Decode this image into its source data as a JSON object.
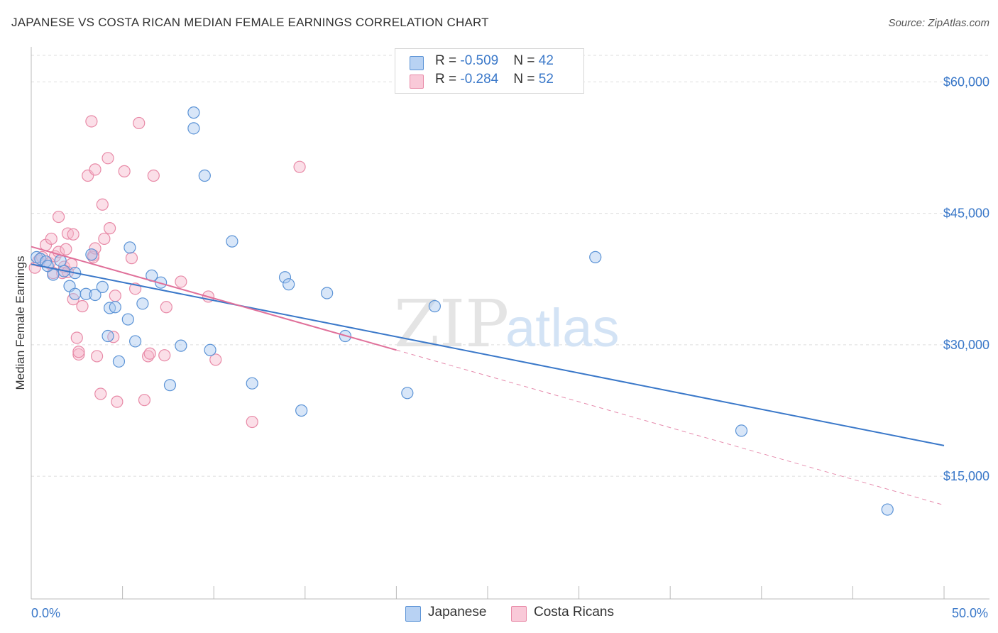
{
  "header": {
    "title": "JAPANESE VS COSTA RICAN MEDIAN FEMALE EARNINGS CORRELATION CHART",
    "source": "Source: ZipAtlas.com"
  },
  "legend_top": {
    "rows": [
      {
        "r_label": "R = ",
        "r_value": "-0.509",
        "n_label": "N = ",
        "n_value": "42"
      },
      {
        "r_label": "R = ",
        "r_value": "-0.284",
        "n_label": "N = ",
        "n_value": "52"
      }
    ]
  },
  "legend_bottom": {
    "items": [
      {
        "label": "Japanese"
      },
      {
        "label": "Costa Ricans"
      }
    ]
  },
  "watermark": {
    "zip": "ZIP",
    "atlas": "atlas"
  },
  "colors": {
    "japanese_fill": "#a9c8f0",
    "japanese_stroke": "#5b93d6",
    "japanese_line": "#3a78c9",
    "costa_fill": "#f6b9cb",
    "costa_stroke": "#e88aa7",
    "costa_line": "#e0709a",
    "grid": "#dddddd",
    "tick_text": "#3a78c9"
  },
  "chart_data": {
    "type": "scatter",
    "title": "JAPANESE VS COSTA RICAN MEDIAN FEMALE EARNINGS CORRELATION CHART",
    "xlabel": "",
    "ylabel": "Median Female Earnings",
    "xlim": [
      0,
      50
    ],
    "ylim": [
      1000,
      64000
    ],
    "x_tick_labels": [
      "0.0%",
      "50.0%"
    ],
    "y_ticks": [
      15000,
      30000,
      45000,
      60000
    ],
    "y_tick_labels": [
      "$15,000",
      "$30,000",
      "$45,000",
      "$60,000"
    ],
    "series": [
      {
        "name": "Japanese",
        "R": -0.509,
        "N": 42,
        "trend": {
          "x0": 0,
          "y0": 39200,
          "x1": 50,
          "y1": 18500
        },
        "points": [
          [
            0.3,
            40000
          ],
          [
            0.5,
            39800
          ],
          [
            0.8,
            39500
          ],
          [
            1.2,
            38000
          ],
          [
            1.6,
            39600
          ],
          [
            1.8,
            38400
          ],
          [
            2.4,
            38200
          ],
          [
            2.1,
            36700
          ],
          [
            2.4,
            35800
          ],
          [
            3.0,
            35800
          ],
          [
            3.3,
            40300
          ],
          [
            3.5,
            35700
          ],
          [
            3.9,
            36600
          ],
          [
            4.3,
            34200
          ],
          [
            4.6,
            34300
          ],
          [
            4.2,
            31000
          ],
          [
            4.8,
            28100
          ],
          [
            5.3,
            32900
          ],
          [
            5.4,
            41100
          ],
          [
            5.7,
            30400
          ],
          [
            6.1,
            34700
          ],
          [
            6.6,
            37900
          ],
          [
            7.1,
            37100
          ],
          [
            7.6,
            25400
          ],
          [
            8.2,
            29900
          ],
          [
            8.9,
            56500
          ],
          [
            8.9,
            54700
          ],
          [
            9.5,
            49300
          ],
          [
            9.8,
            29400
          ],
          [
            11.0,
            41800
          ],
          [
            12.1,
            25600
          ],
          [
            13.9,
            37700
          ],
          [
            14.1,
            36900
          ],
          [
            14.8,
            22500
          ],
          [
            16.2,
            35900
          ],
          [
            17.2,
            31000
          ],
          [
            20.6,
            24500
          ],
          [
            22.1,
            34400
          ],
          [
            30.9,
            40000
          ],
          [
            38.9,
            20200
          ],
          [
            46.9,
            11200
          ],
          [
            0.9,
            39000
          ]
        ]
      },
      {
        "name": "Costa Ricans",
        "R": -0.284,
        "N": 52,
        "trend": {
          "x0": 0,
          "y0": 41200,
          "x1": 20,
          "y1": 29400
        },
        "trend_extension": {
          "x0": 20,
          "y0": 29400,
          "x1": 50,
          "y1": 11700
        },
        "points": [
          [
            0.2,
            38800
          ],
          [
            0.4,
            39600
          ],
          [
            0.6,
            40000
          ],
          [
            0.8,
            41400
          ],
          [
            1.0,
            39300
          ],
          [
            1.1,
            42100
          ],
          [
            1.2,
            38200
          ],
          [
            1.3,
            40100
          ],
          [
            1.5,
            40600
          ],
          [
            1.5,
            44600
          ],
          [
            1.7,
            38200
          ],
          [
            1.8,
            38900
          ],
          [
            1.9,
            40900
          ],
          [
            2.0,
            42700
          ],
          [
            2.0,
            38300
          ],
          [
            2.2,
            39200
          ],
          [
            2.3,
            42600
          ],
          [
            2.3,
            35200
          ],
          [
            2.5,
            30800
          ],
          [
            2.6,
            28900
          ],
          [
            2.6,
            29200
          ],
          [
            2.8,
            34400
          ],
          [
            3.1,
            49300
          ],
          [
            3.3,
            55500
          ],
          [
            3.4,
            40200
          ],
          [
            3.4,
            40000
          ],
          [
            3.5,
            41000
          ],
          [
            3.5,
            50000
          ],
          [
            3.6,
            28700
          ],
          [
            3.8,
            24400
          ],
          [
            3.9,
            46000
          ],
          [
            4.0,
            42100
          ],
          [
            4.2,
            51300
          ],
          [
            4.3,
            43300
          ],
          [
            4.5,
            30900
          ],
          [
            4.6,
            35600
          ],
          [
            4.7,
            23500
          ],
          [
            5.1,
            49800
          ],
          [
            5.5,
            39900
          ],
          [
            5.7,
            36400
          ],
          [
            5.9,
            55300
          ],
          [
            6.2,
            23700
          ],
          [
            6.4,
            28700
          ],
          [
            6.5,
            29000
          ],
          [
            6.7,
            49300
          ],
          [
            7.3,
            28800
          ],
          [
            7.4,
            34300
          ],
          [
            8.2,
            37200
          ],
          [
            9.7,
            35500
          ],
          [
            10.1,
            28300
          ],
          [
            12.1,
            21200
          ],
          [
            14.7,
            50300
          ]
        ]
      }
    ]
  }
}
